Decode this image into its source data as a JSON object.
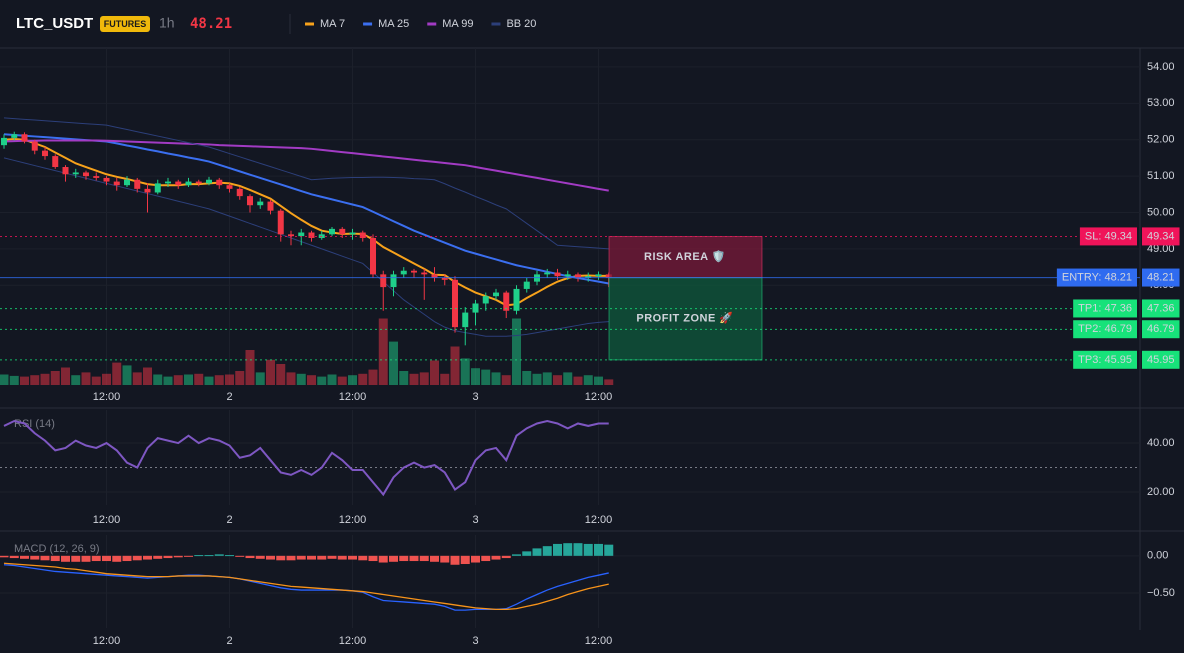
{
  "header": {
    "symbol": "LTC_USDT",
    "badge": "FUTURES",
    "interval": "1h",
    "price": 48.21
  },
  "chart_data": [
    {
      "type": "candlestick",
      "categories": [
        null,
        null,
        null,
        null,
        null,
        null,
        null,
        null,
        null,
        null,
        "12:00",
        null,
        null,
        null,
        null,
        null,
        null,
        null,
        null,
        null,
        null,
        null,
        "2",
        null,
        null,
        null,
        null,
        null,
        null,
        null,
        null,
        null,
        null,
        null,
        "12:00",
        null,
        null,
        null,
        null,
        null,
        null,
        null,
        null,
        null,
        null,
        null,
        "3",
        null,
        null,
        null,
        null,
        null,
        null,
        null,
        null,
        null,
        null,
        null,
        "12:00",
        null
      ],
      "open": [
        51.85,
        52.05,
        52.15,
        51.95,
        51.7,
        51.55,
        51.25,
        51.05,
        51.1,
        51.0,
        50.95,
        50.85,
        50.75,
        50.9,
        50.65,
        50.55,
        50.8,
        50.85,
        50.75,
        50.85,
        50.8,
        50.9,
        50.75,
        50.65,
        50.45,
        50.2,
        50.3,
        50.05,
        49.4,
        49.35,
        49.45,
        49.3,
        49.4,
        49.55,
        49.4,
        49.45,
        49.3,
        48.3,
        47.95,
        48.3,
        48.4,
        48.35,
        48.3,
        48.2,
        48.15,
        46.85,
        47.25,
        47.5,
        47.7,
        47.8,
        47.3,
        47.9,
        48.1,
        48.3,
        48.35,
        48.25,
        48.3,
        48.2,
        48.25,
        48.3
      ],
      "high": [
        52.15,
        52.22,
        52.2,
        52.0,
        51.8,
        51.6,
        51.3,
        51.2,
        51.15,
        51.1,
        51.0,
        50.95,
        51.0,
        50.95,
        50.8,
        50.9,
        50.95,
        50.9,
        50.95,
        50.9,
        50.98,
        50.95,
        50.8,
        50.7,
        50.5,
        50.4,
        50.35,
        50.1,
        49.5,
        49.55,
        49.5,
        49.5,
        49.6,
        49.6,
        49.55,
        49.5,
        49.4,
        48.4,
        48.4,
        48.5,
        48.45,
        48.45,
        48.5,
        48.3,
        48.25,
        47.4,
        47.6,
        47.8,
        47.9,
        47.85,
        48.0,
        48.2,
        48.4,
        48.45,
        48.45,
        48.4,
        48.35,
        48.35,
        48.38,
        48.35
      ],
      "low": [
        51.75,
        51.98,
        51.9,
        51.6,
        51.45,
        51.2,
        50.85,
        50.95,
        50.9,
        50.88,
        50.75,
        50.6,
        50.7,
        50.55,
        50.0,
        50.5,
        50.7,
        50.65,
        50.7,
        50.72,
        50.75,
        50.65,
        50.55,
        50.35,
        50.0,
        50.1,
        49.95,
        49.2,
        49.1,
        49.1,
        49.2,
        49.25,
        49.35,
        49.3,
        49.25,
        49.2,
        48.2,
        47.3,
        47.7,
        48.2,
        48.2,
        47.6,
        48.1,
        48.0,
        46.7,
        46.35,
        46.9,
        47.3,
        47.6,
        47.1,
        47.2,
        47.8,
        48.0,
        48.2,
        48.15,
        48.15,
        48.1,
        48.1,
        48.15,
        47.95
      ],
      "close": [
        52.05,
        52.15,
        51.95,
        51.7,
        51.55,
        51.25,
        51.05,
        51.1,
        51.0,
        50.95,
        50.85,
        50.75,
        50.9,
        50.65,
        50.55,
        50.8,
        50.85,
        50.75,
        50.85,
        50.8,
        50.9,
        50.75,
        50.65,
        50.45,
        50.2,
        50.3,
        50.05,
        49.4,
        49.35,
        49.45,
        49.3,
        49.4,
        49.55,
        49.4,
        49.45,
        49.3,
        48.3,
        47.95,
        48.3,
        48.4,
        48.35,
        48.3,
        48.2,
        48.15,
        46.85,
        47.25,
        47.5,
        47.7,
        47.8,
        47.3,
        47.9,
        48.1,
        48.3,
        48.35,
        48.25,
        48.3,
        48.2,
        48.25,
        48.3,
        48.21
      ],
      "volume": [
        15,
        13,
        12,
        14,
        16,
        20,
        25,
        14,
        18,
        12,
        16,
        32,
        28,
        18,
        25,
        15,
        12,
        14,
        15,
        16,
        12,
        14,
        15,
        20,
        50,
        18,
        36,
        30,
        18,
        16,
        14,
        12,
        15,
        12,
        14,
        16,
        22,
        95,
        62,
        20,
        16,
        18,
        35,
        16,
        55,
        38,
        24,
        22,
        18,
        14,
        95,
        20,
        16,
        18,
        14,
        18,
        12,
        14,
        12,
        8
      ],
      "vlim": [
        0,
        100
      ],
      "up_color": "#1fcf8a",
      "down_color": "#f23645",
      "ylim": [
        45.26,
        54.52
      ],
      "yticks": [
        {
          "value": 54,
          "label": "54.00"
        },
        {
          "value": 53,
          "label": "53.00"
        },
        {
          "value": 52,
          "label": "52.00"
        },
        {
          "value": 51,
          "label": "51.00"
        },
        {
          "value": 50,
          "label": "50.00"
        },
        {
          "value": 49,
          "label": "49.00"
        },
        {
          "value": 48,
          "label": "48.00"
        }
      ],
      "series": [
        {
          "name": "MA 7",
          "color": "#f7a21b",
          "values": [
            52.0,
            52.02,
            52.0,
            51.9,
            51.8,
            51.65,
            51.5,
            51.35,
            51.25,
            51.15,
            51.05,
            50.98,
            50.92,
            50.85,
            50.78,
            50.75,
            50.75,
            50.75,
            50.78,
            50.78,
            50.8,
            50.82,
            50.8,
            50.73,
            50.62,
            50.5,
            50.38,
            50.18,
            49.98,
            49.8,
            49.63,
            49.5,
            49.45,
            49.41,
            49.42,
            49.41,
            49.26,
            49.05,
            48.9,
            48.75,
            48.6,
            48.45,
            48.29,
            48.28,
            48.09,
            47.94,
            47.8,
            47.7,
            47.6,
            47.45,
            47.48,
            47.65,
            47.8,
            47.96,
            48.1,
            48.2,
            48.26,
            48.27,
            48.26,
            48.26
          ]
        },
        {
          "name": "MA 25",
          "color": "#3b6ff0",
          "values": [
            52.15,
            52.13,
            52.11,
            52.09,
            52.07,
            52.05,
            52.03,
            52.01,
            51.99,
            51.97,
            51.95,
            51.9,
            51.84,
            51.79,
            51.73,
            51.68,
            51.62,
            51.57,
            51.51,
            51.46,
            51.4,
            51.31,
            51.22,
            51.13,
            51.04,
            50.95,
            50.86,
            50.77,
            50.68,
            50.59,
            50.5,
            50.43,
            50.36,
            50.29,
            50.22,
            50.15,
            50.02,
            49.89,
            49.76,
            49.63,
            49.5,
            49.39,
            49.28,
            49.17,
            49.06,
            48.95,
            48.87,
            48.79,
            48.71,
            48.63,
            48.55,
            48.49,
            48.43,
            48.37,
            48.31,
            48.25,
            48.2,
            48.15,
            48.1,
            48.05
          ]
        },
        {
          "name": "MA 99",
          "color": "#a23bc4",
          "values": [
            51.95,
            51.96,
            51.97,
            51.97,
            51.98,
            51.98,
            51.98,
            51.98,
            51.98,
            51.98,
            51.97,
            51.96,
            51.95,
            51.94,
            51.93,
            51.92,
            51.91,
            51.9,
            51.89,
            51.88,
            51.87,
            51.85,
            51.84,
            51.83,
            51.82,
            51.81,
            51.8,
            51.79,
            51.78,
            51.77,
            51.75,
            51.72,
            51.69,
            51.66,
            51.63,
            51.6,
            51.57,
            51.54,
            51.51,
            51.48,
            51.45,
            51.42,
            51.39,
            51.36,
            51.33,
            51.3,
            51.25,
            51.2,
            51.15,
            51.1,
            51.05,
            51.0,
            50.95,
            50.9,
            50.85,
            50.8,
            50.75,
            50.7,
            50.65,
            50.6
          ]
        },
        {
          "name": "BB 20",
          "color": "#2c3f7a",
          "upper": [
            52.6,
            52.58,
            52.56,
            52.54,
            52.52,
            52.5,
            52.48,
            52.46,
            52.44,
            52.42,
            52.4,
            52.34,
            52.28,
            52.22,
            52.16,
            52.1,
            52.04,
            51.98,
            51.92,
            51.86,
            51.8,
            51.71,
            51.62,
            51.53,
            51.44,
            51.35,
            51.26,
            51.17,
            51.08,
            50.99,
            50.9,
            50.92,
            50.94,
            50.95,
            50.96,
            50.96,
            50.97,
            50.97,
            50.96,
            50.95,
            50.93,
            50.92,
            50.9,
            50.79,
            50.67,
            50.56,
            50.44,
            50.33,
            50.21,
            50.1,
            49.9,
            49.7,
            49.5,
            49.3,
            49.1,
            49.08,
            49.06,
            49.04,
            49.02,
            49.0
          ],
          "lower": [
            51.5,
            51.43,
            51.36,
            51.29,
            51.22,
            51.15,
            51.08,
            51.01,
            50.94,
            50.87,
            50.8,
            50.73,
            50.66,
            50.59,
            50.52,
            50.45,
            50.38,
            50.31,
            50.24,
            50.17,
            50.1,
            50.0,
            49.9,
            49.8,
            49.7,
            49.6,
            49.5,
            49.4,
            49.3,
            49.2,
            49.1,
            49.0,
            48.9,
            48.8,
            48.7,
            48.6,
            48.35,
            48.1,
            47.85,
            47.6,
            47.4,
            47.2,
            47.0,
            46.85,
            46.75,
            46.7,
            46.65,
            46.6,
            46.6,
            46.6,
            46.62,
            46.65,
            46.7,
            46.75,
            46.8,
            46.85,
            46.9,
            46.95,
            46.98,
            47.0
          ]
        }
      ],
      "levels": [
        {
          "label": "SL: 49.34",
          "value": 49.34,
          "color": "#f0145a",
          "text_color": "#ffffff",
          "dash": true
        },
        {
          "label": "ENTRY: 48.21",
          "value": 48.21,
          "color": "#2f6bf0",
          "text_color": "#ffffff",
          "dash": false
        },
        {
          "label": "TP1: 47.36",
          "value": 47.36,
          "color": "#17e27a",
          "text_color": "#0b1a12",
          "dash": true
        },
        {
          "label": "TP2: 46.79",
          "value": 46.79,
          "color": "#17e27a",
          "text_color": "#0b1a12",
          "dash": true
        },
        {
          "label": "TP3: 45.95",
          "value": 45.95,
          "color": "#17e27a",
          "text_color": "#0b1a12",
          "dash": true
        }
      ],
      "zones": [
        {
          "label": "RISK AREA 🛡️",
          "top": 49.34,
          "bottom": 48.21,
          "color": "#7a1a3a",
          "text_color": "#ff3a72"
        },
        {
          "label": "PROFIT ZONE 🚀",
          "top": 48.21,
          "bottom": 45.95,
          "color": "#0f5a3c",
          "text_color": "#22e38a"
        }
      ]
    },
    {
      "type": "line",
      "title": "RSI (14)",
      "categories": [
        null,
        null,
        null,
        null,
        null,
        null,
        null,
        null,
        null,
        null,
        "12:00",
        null,
        null,
        null,
        null,
        null,
        null,
        null,
        null,
        null,
        null,
        null,
        "2",
        null,
        null,
        null,
        null,
        null,
        null,
        null,
        null,
        null,
        null,
        null,
        "12:00",
        null,
        null,
        null,
        null,
        null,
        null,
        null,
        null,
        null,
        null,
        null,
        "3",
        null,
        null,
        null,
        null,
        null,
        null,
        null,
        null,
        null,
        null,
        null,
        "12:00",
        null
      ],
      "values": [
        47,
        49,
        48,
        44,
        41,
        37,
        38,
        41,
        39,
        38,
        40,
        37,
        32,
        30,
        38,
        42,
        41,
        40,
        43,
        40,
        42,
        41,
        39,
        34,
        35,
        38,
        33,
        28,
        27,
        29,
        27,
        30,
        36,
        33,
        29,
        29,
        24,
        19,
        26,
        30,
        32,
        30,
        31,
        28,
        21,
        24,
        33,
        37,
        38,
        33,
        43,
        46,
        48,
        49,
        48,
        46,
        48,
        47,
        48,
        48
      ],
      "color": "#7e57c2",
      "ref_line": 30,
      "ylim": [
        14.7,
        53.5
      ],
      "yticks": [
        {
          "value": 40,
          "label": "40.00"
        },
        {
          "value": 20,
          "label": "20.00"
        }
      ]
    },
    {
      "type": "macd",
      "title": "MACD (12, 26, 9)",
      "categories": [
        null,
        null,
        null,
        null,
        null,
        null,
        null,
        null,
        null,
        null,
        "12:00",
        null,
        null,
        null,
        null,
        null,
        null,
        null,
        null,
        null,
        null,
        null,
        "2",
        null,
        null,
        null,
        null,
        null,
        null,
        null,
        null,
        null,
        null,
        null,
        "12:00",
        null,
        null,
        null,
        null,
        null,
        null,
        null,
        null,
        null,
        null,
        null,
        "3",
        null,
        null,
        null,
        null,
        null,
        null,
        null,
        null,
        null,
        null,
        null,
        "12:00",
        null
      ],
      "histogram": [
        -0.02,
        -0.03,
        -0.04,
        -0.05,
        -0.06,
        -0.07,
        -0.08,
        -0.08,
        -0.08,
        -0.07,
        -0.07,
        -0.08,
        -0.07,
        -0.06,
        -0.05,
        -0.04,
        -0.03,
        -0.02,
        -0.01,
        0.01,
        0.01,
        0.02,
        0.01,
        -0.01,
        -0.03,
        -0.04,
        -0.05,
        -0.06,
        -0.06,
        -0.05,
        -0.05,
        -0.05,
        -0.04,
        -0.05,
        -0.05,
        -0.06,
        -0.07,
        -0.09,
        -0.08,
        -0.07,
        -0.07,
        -0.07,
        -0.08,
        -0.09,
        -0.12,
        -0.11,
        -0.09,
        -0.07,
        -0.05,
        -0.03,
        0.02,
        0.06,
        0.1,
        0.13,
        0.16,
        0.17,
        0.17,
        0.16,
        0.16,
        0.15
      ],
      "up_color": "#26a69a",
      "down_color": "#ef5350",
      "series": [
        {
          "color": "#2962ff",
          "values": [
            -0.12,
            -0.13,
            -0.15,
            -0.17,
            -0.19,
            -0.21,
            -0.22,
            -0.23,
            -0.24,
            -0.25,
            -0.26,
            -0.27,
            -0.28,
            -0.29,
            -0.3,
            -0.29,
            -0.28,
            -0.27,
            -0.26,
            -0.26,
            -0.27,
            -0.28,
            -0.29,
            -0.31,
            -0.34,
            -0.37,
            -0.4,
            -0.43,
            -0.45,
            -0.46,
            -0.46,
            -0.46,
            -0.46,
            -0.46,
            -0.47,
            -0.49,
            -0.55,
            -0.6,
            -0.61,
            -0.62,
            -0.63,
            -0.64,
            -0.65,
            -0.68,
            -0.73,
            -0.73,
            -0.72,
            -0.72,
            -0.72,
            -0.71,
            -0.65,
            -0.58,
            -0.52,
            -0.46,
            -0.41,
            -0.37,
            -0.33,
            -0.29,
            -0.26,
            -0.23
          ]
        },
        {
          "color": "#f7931a",
          "values": [
            -0.1,
            -0.11,
            -0.12,
            -0.13,
            -0.14,
            -0.15,
            -0.17,
            -0.18,
            -0.2,
            -0.22,
            -0.24,
            -0.25,
            -0.26,
            -0.27,
            -0.28,
            -0.28,
            -0.28,
            -0.27,
            -0.27,
            -0.27,
            -0.27,
            -0.28,
            -0.29,
            -0.31,
            -0.33,
            -0.35,
            -0.37,
            -0.39,
            -0.41,
            -0.42,
            -0.43,
            -0.44,
            -0.45,
            -0.46,
            -0.47,
            -0.48,
            -0.5,
            -0.52,
            -0.54,
            -0.56,
            -0.58,
            -0.6,
            -0.62,
            -0.64,
            -0.66,
            -0.68,
            -0.7,
            -0.71,
            -0.72,
            -0.72,
            -0.71,
            -0.68,
            -0.65,
            -0.61,
            -0.57,
            -0.52,
            -0.48,
            -0.44,
            -0.41,
            -0.38
          ]
        }
      ],
      "ylim": [
        -0.97,
        0.28
      ],
      "yticks": [
        {
          "value": 0,
          "label": "0.00"
        },
        {
          "value": -0.5,
          "label": "−0.50"
        }
      ]
    }
  ]
}
